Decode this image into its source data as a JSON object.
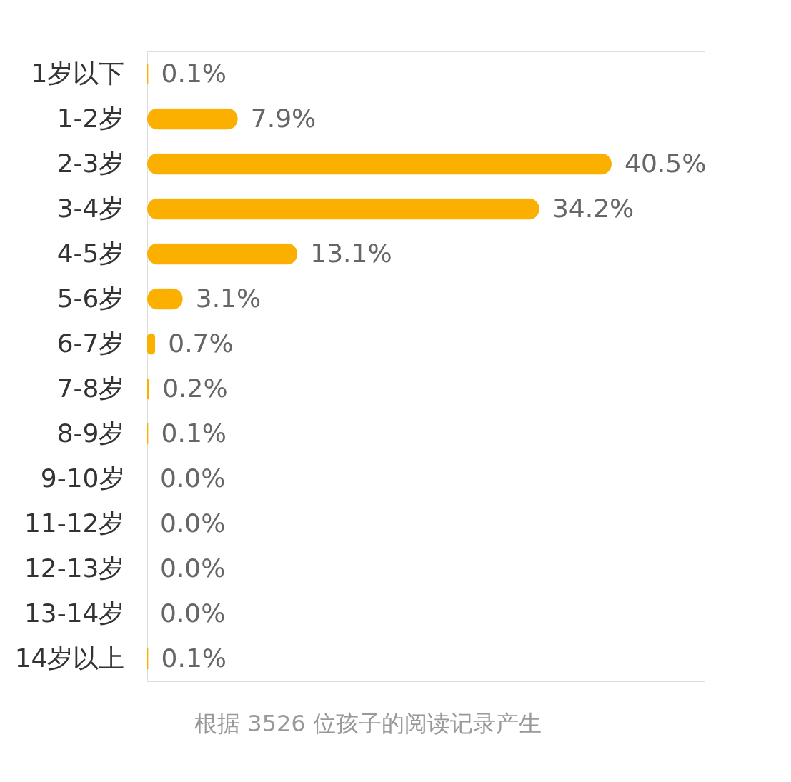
{
  "chart_data": {
    "type": "bar",
    "orientation": "horizontal",
    "categories": [
      "1岁以下",
      "1-2岁",
      "2-3岁",
      "3-4岁",
      "4-5岁",
      "5-6岁",
      "6-7岁",
      "7-8岁",
      "8-9岁",
      "9-10岁",
      "11-12岁",
      "12-13岁",
      "13-14岁",
      "14岁以上"
    ],
    "values": [
      0.1,
      7.9,
      40.5,
      34.2,
      13.1,
      3.1,
      0.7,
      0.2,
      0.1,
      0.0,
      0.0,
      0.0,
      0.0,
      0.1
    ],
    "value_labels": [
      "0.1%",
      "7.9%",
      "40.5%",
      "34.2%",
      "13.1%",
      "3.1%",
      "0.7%",
      "0.2%",
      "0.1%",
      "0.0%",
      "0.0%",
      "0.0%",
      "0.0%",
      "0.1%"
    ],
    "color": "#fbb000",
    "annotations": [
      "根据 3526 位孩子的阅读记录产生"
    ]
  }
}
